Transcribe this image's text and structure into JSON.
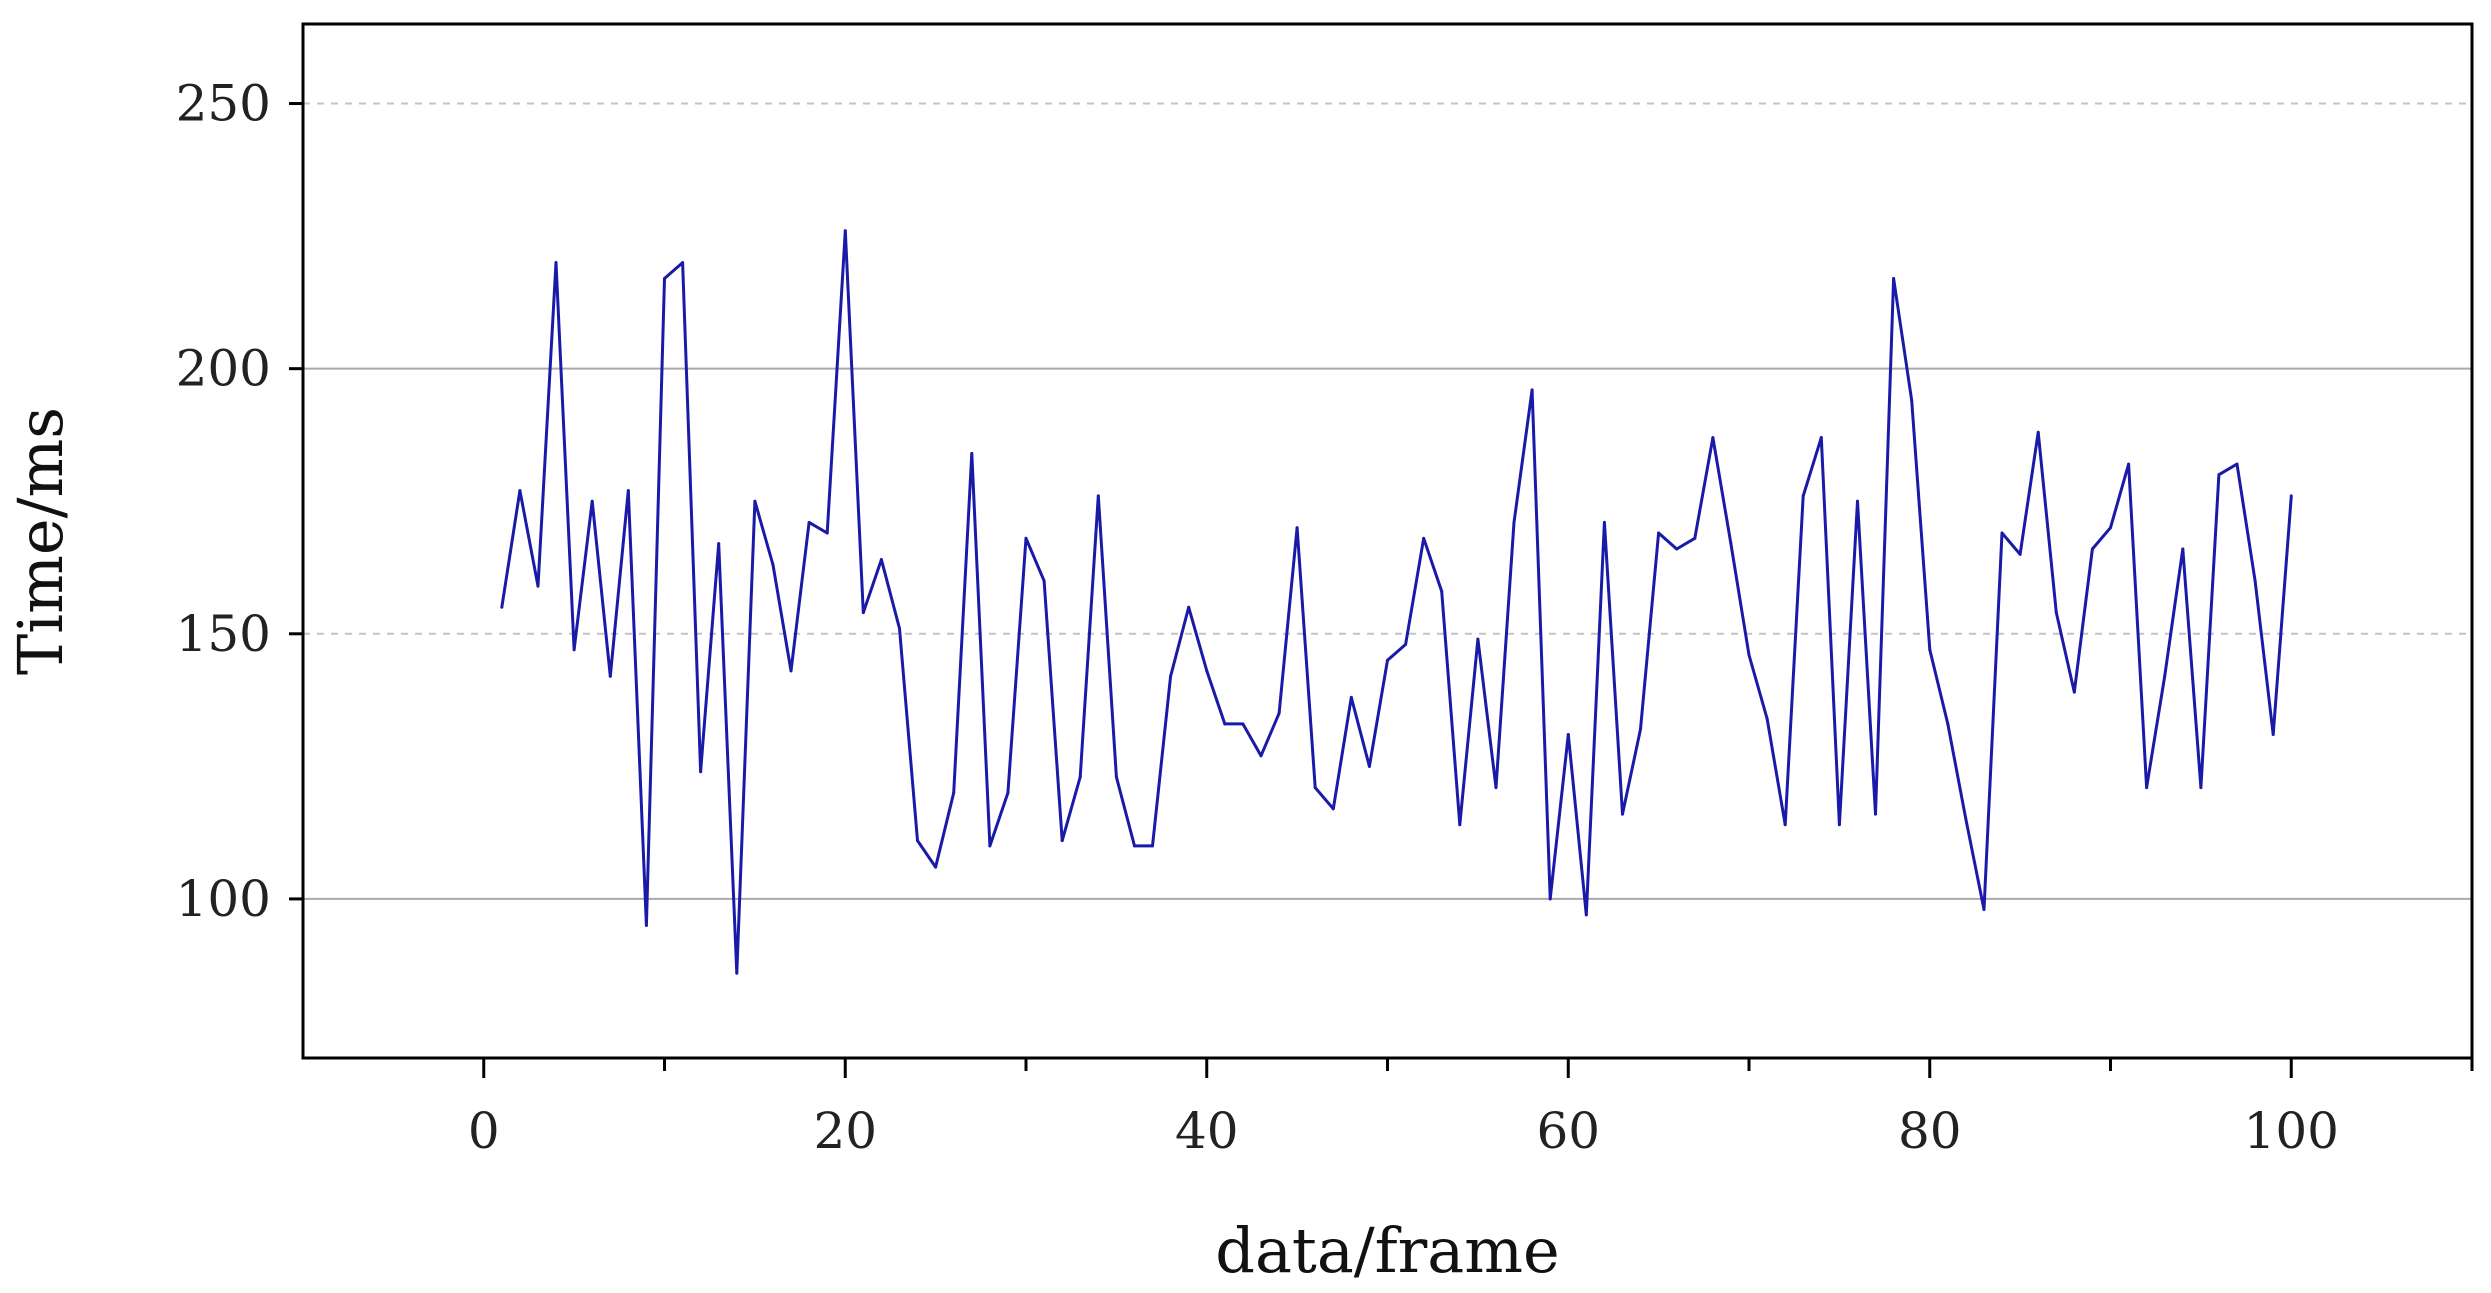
{
  "chart_data": {
    "type": "line",
    "title": "",
    "xlabel": "data/frame",
    "ylabel": "Time/ms",
    "xlim": [
      -10,
      110
    ],
    "ylim": [
      70,
      265
    ],
    "x_ticks": [
      0,
      20,
      40,
      60,
      80,
      100
    ],
    "x_minor_ticks": [
      10,
      30,
      50,
      70,
      90,
      110
    ],
    "y_ticks": [
      100,
      150,
      200,
      250
    ],
    "grid": {
      "solid_y": [
        100,
        200
      ],
      "dashed_y": [
        150,
        250
      ]
    },
    "legend": "none",
    "colors": {
      "line": "#1a1aa8",
      "grid": "#a9a9a9",
      "axis": "#000000"
    },
    "series": [
      {
        "x": [
          1,
          2,
          3,
          4,
          5,
          6,
          7,
          8,
          9,
          10,
          11,
          12,
          13,
          14,
          15,
          16,
          17,
          18,
          19,
          20,
          21,
          22,
          23,
          24,
          25,
          26,
          27,
          28,
          29,
          30,
          31,
          32,
          33,
          34,
          35,
          36,
          37,
          38,
          39,
          40,
          41,
          42,
          43,
          44,
          45,
          46,
          47,
          48,
          49,
          50,
          51,
          52,
          53,
          54,
          55,
          56,
          57,
          58,
          59,
          60,
          61,
          62,
          63,
          64,
          65,
          66,
          67,
          68,
          69,
          70,
          71,
          72,
          73,
          74,
          75,
          76,
          77,
          78,
          79,
          80,
          81,
          82,
          83,
          84,
          85,
          86,
          87,
          88,
          89,
          90,
          91,
          92,
          93,
          94,
          95,
          96,
          97,
          98,
          99,
          100
        ],
        "values": [
          155,
          177,
          159,
          220,
          147,
          175,
          142,
          177,
          95,
          217,
          220,
          124,
          167,
          86,
          175,
          163,
          143,
          171,
          169,
          226,
          154,
          164,
          151,
          111,
          106,
          120,
          184,
          110,
          120,
          168,
          160,
          111,
          123,
          176,
          123,
          110,
          110,
          142,
          155,
          143,
          133,
          133,
          127,
          135,
          170,
          121,
          117,
          138,
          125,
          145,
          148,
          168,
          158,
          114,
          149,
          121,
          171,
          196,
          100,
          131,
          97,
          171,
          116,
          132,
          169,
          166,
          168,
          187,
          167,
          146,
          134,
          114,
          176,
          187,
          114,
          175,
          116,
          217,
          194,
          147,
          133,
          115,
          98,
          169,
          165,
          188,
          154,
          139,
          166,
          170,
          182,
          121,
          142,
          166,
          121,
          180,
          182,
          160,
          131,
          176
        ]
      }
    ]
  }
}
